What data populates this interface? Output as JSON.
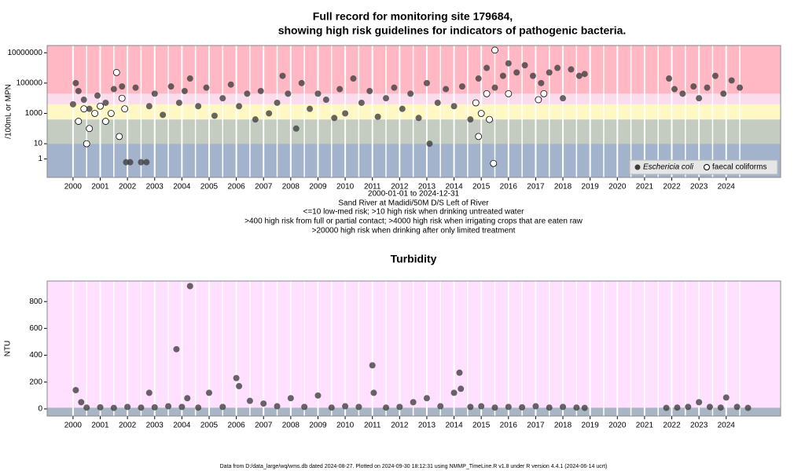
{
  "chart_data": [
    {
      "type": "scatter",
      "title": [
        "Full record for monitoring site 179684,",
        "showing high risk guidelines for indicators of pathogenic bacteria."
      ],
      "ylabel": "/100mL or MPN",
      "xlabel": "2000-01-01 to 2024-12-31",
      "notes": [
        "Sand River at Madidi/50M D/S Left of River",
        "<=10 low-med risk; >10 high risk when drinking untreated water",
        ">400 high risk from full or partial contact; >4000 high risk when irrigating crops that are eaten raw",
        ">20000 high risk when drinking after only limited treatment"
      ],
      "log_y": true,
      "xlim": [
        1999.05,
        2026.0
      ],
      "xticks": [
        2000,
        2001,
        2002,
        2003,
        2004,
        2005,
        2006,
        2007,
        2008,
        2009,
        2010,
        2011,
        2012,
        2013,
        2014,
        2015,
        2016,
        2017,
        2018,
        2019,
        2020,
        2021,
        2022,
        2023,
        2024
      ],
      "ylim": [
        0.06,
        30000000
      ],
      "yticks": [
        1,
        10,
        1000,
        100000,
        10000000
      ],
      "legend": "bottomright",
      "bands": [
        {
          "to": 10,
          "color": "#a3b3cc"
        },
        {
          "from": 10,
          "to": 400,
          "color": "#c4cbc0"
        },
        {
          "from": 400,
          "to": 4000,
          "color": "#fff7c4"
        },
        {
          "from": 4000,
          "to": 20000,
          "color": "#fadcec"
        },
        {
          "from": 20000,
          "color": "#ffb8c4"
        }
      ],
      "series": [
        {
          "name": "Eschericia coli",
          "color": "#3c3c3c",
          "filled": true,
          "x": [
            2000.0,
            2000.1,
            2000.2,
            2000.4,
            2000.6,
            2000.9,
            2001.2,
            2001.5,
            2001.8,
            2001.95,
            2002.1,
            2002.3,
            2002.5,
            2002.7,
            2002.8,
            2003.0,
            2003.3,
            2003.6,
            2003.9,
            2004.1,
            2004.3,
            2004.6,
            2004.9,
            2005.2,
            2005.5,
            2005.8,
            2006.1,
            2006.4,
            2006.7,
            2006.9,
            2007.2,
            2007.5,
            2007.7,
            2007.9,
            2008.2,
            2008.4,
            2008.7,
            2009.0,
            2009.3,
            2009.6,
            2009.8,
            2010.0,
            2010.3,
            2010.6,
            2010.9,
            2011.2,
            2011.5,
            2011.8,
            2012.1,
            2012.4,
            2012.7,
            2013.0,
            2013.1,
            2013.4,
            2013.7,
            2014.0,
            2014.3,
            2014.6,
            2014.9,
            2015.2,
            2015.5,
            2015.8,
            2016.0,
            2016.3,
            2016.6,
            2016.9,
            2017.2,
            2017.5,
            2017.8,
            2018.0,
            2018.3,
            2018.6,
            2018.8,
            2021.9,
            2022.1,
            2022.4,
            2022.8,
            2023.0,
            2023.3,
            2023.6,
            2023.9,
            2024.2,
            2024.5
          ],
          "values": [
            4000,
            100000,
            30000,
            8000,
            2000,
            15000,
            5000,
            40000,
            60000,
            0.6,
            0.6,
            50000,
            0.6,
            0.6,
            3000,
            20000,
            800,
            60000,
            5000,
            30000,
            200000,
            3000,
            50000,
            700,
            10000,
            80000,
            3000,
            20000,
            400,
            30000,
            1000,
            5000,
            300000,
            20000,
            100,
            100000,
            2000,
            20000,
            8000,
            500,
            40000,
            1000,
            200000,
            5000,
            30000,
            600,
            10000,
            50000,
            2000,
            20000,
            500,
            100000,
            10,
            5000,
            40000,
            3000,
            60000,
            400,
            200000,
            1000000,
            50000,
            300000,
            2000000,
            500000,
            1500000,
            300000,
            100000,
            500000,
            1000000,
            10000,
            800000,
            300000,
            400000,
            200000,
            40000,
            20000,
            60000,
            10000,
            50000,
            300000,
            20000,
            150000,
            50000
          ]
        },
        {
          "name": "faecal coliforms",
          "color": "#000000",
          "filled": false,
          "x": [
            2000.2,
            2000.4,
            2000.5,
            2000.6,
            2000.8,
            2001.0,
            2001.2,
            2001.4,
            2001.6,
            2001.7,
            2001.8,
            2001.9,
            2014.8,
            2014.9,
            2015.0,
            2015.2,
            2015.3,
            2015.45,
            2015.5,
            2016.0,
            2017.1,
            2017.3
          ],
          "values": [
            300,
            2000,
            10,
            100,
            1000,
            3000,
            300,
            1000,
            500000,
            30,
            10000,
            2000,
            5000,
            30,
            1000,
            20000,
            400,
            0.5,
            15000000,
            20000,
            8000,
            20000
          ]
        }
      ]
    },
    {
      "type": "scatter",
      "title": "Turbidity",
      "ylabel": "NTU",
      "log_y": false,
      "xlim": [
        1999.05,
        2026.0
      ],
      "xticks": [
        2000,
        2001,
        2002,
        2003,
        2004,
        2005,
        2006,
        2007,
        2008,
        2009,
        2010,
        2011,
        2012,
        2013,
        2014,
        2015,
        2016,
        2017,
        2018,
        2019,
        2020,
        2021,
        2022,
        2023,
        2024
      ],
      "ylim": [
        -53,
        953
      ],
      "yticks": [
        0,
        200,
        400,
        600,
        800
      ],
      "bands": [
        {
          "to": 10,
          "color": "#a9b4c4"
        },
        {
          "from": 10,
          "color": "#ffe0ff"
        }
      ],
      "series": [
        {
          "name": "Turbidity",
          "color": "#3c3c3c",
          "filled": true,
          "x": [
            2000.1,
            2000.3,
            2000.5,
            2001.0,
            2001.5,
            2002.0,
            2002.5,
            2002.8,
            2003.0,
            2003.5,
            2003.8,
            2004.0,
            2004.2,
            2004.3,
            2004.6,
            2005.0,
            2005.5,
            2006.0,
            2006.1,
            2006.5,
            2007.0,
            2007.5,
            2008.0,
            2008.5,
            2009.0,
            2009.5,
            2010.0,
            2010.5,
            2011.0,
            2011.05,
            2011.5,
            2012.0,
            2012.5,
            2013.0,
            2013.5,
            2014.0,
            2014.2,
            2014.25,
            2014.6,
            2015.0,
            2015.5,
            2016.0,
            2016.5,
            2017.0,
            2017.5,
            2018.0,
            2018.5,
            2018.8,
            2021.8,
            2022.2,
            2022.6,
            2023.0,
            2023.4,
            2023.8,
            2024.0,
            2024.4,
            2024.8
          ],
          "values": [
            140,
            50,
            10,
            12,
            8,
            15,
            10,
            120,
            12,
            20,
            445,
            15,
            80,
            915,
            10,
            120,
            15,
            230,
            170,
            60,
            40,
            20,
            80,
            15,
            100,
            10,
            20,
            15,
            325,
            120,
            10,
            15,
            50,
            80,
            20,
            120,
            270,
            150,
            15,
            20,
            10,
            15,
            12,
            20,
            10,
            15,
            10,
            8,
            8,
            10,
            15,
            50,
            15,
            10,
            85,
            15,
            8
          ]
        }
      ]
    }
  ],
  "footer": "Data from D:/data_large/wq/wms.db dated 2024-08-27. Plotted on 2024-09-30 18:12:31 using NMMP_TimeLine.R v1.8 under R version 4.4.1 (2024-06-14 ucrt)"
}
